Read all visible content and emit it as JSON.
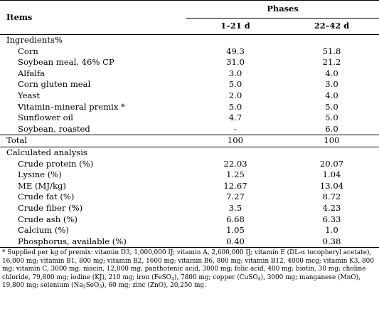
{
  "header": {
    "items": "Items",
    "phases": "Phases",
    "phase1": "1–21 d",
    "phase2": "22–42 d"
  },
  "ingredients": {
    "title": "Ingredients%",
    "rows": [
      {
        "name": "Corn",
        "p1": "49.3",
        "p2": "51.8"
      },
      {
        "name": "Soybean meal, 46% CP",
        "p1": "31.0",
        "p2": "21.2"
      },
      {
        "name": "Alfalfa",
        "p1": "3.0",
        "p2": "4.0"
      },
      {
        "name": "Corn gluten meal",
        "p1": "5.0",
        "p2": "3.0"
      },
      {
        "name": "Yeast",
        "p1": "2.0",
        "p2": "4.0"
      },
      {
        "name": "Vitamin–mineral premix *",
        "p1": "5.0",
        "p2": "5.0"
      },
      {
        "name": "Sunflower oil",
        "p1": "4.7",
        "p2": "5.0"
      },
      {
        "name": "Soybean, roasted",
        "p1": "-",
        "p2": "6.0"
      }
    ],
    "total": {
      "name": "Total",
      "p1": "100",
      "p2": "100"
    }
  },
  "analysis": {
    "title": "Calculated analysis",
    "rows": [
      {
        "name": "Crude protein (%)",
        "p1": "22.03",
        "p2": "20.07"
      },
      {
        "name": "Lysine (%)",
        "p1": "1.25",
        "p2": "1.04"
      },
      {
        "name": "ME (MJ/kg)",
        "p1": "12.67",
        "p2": "13.04"
      },
      {
        "name": "Crude fat (%)",
        "p1": "7.27",
        "p2": "8.72"
      },
      {
        "name": "Crude fiber (%)",
        "p1": "3.5",
        "p2": "4.23"
      },
      {
        "name": "Crude ash (%)",
        "p1": "6.68",
        "p2": "6.33"
      },
      {
        "name": "Calcium (%)",
        "p1": "1.05",
        "p2": "1.0"
      },
      {
        "name": "Phosphorus, available (%)",
        "p1": "0.40",
        "p2": "0.38"
      }
    ]
  },
  "footnote": {
    "part1": "* Supplied per kg of premix: vitamin D3, 1,000,000 IJ; vitamin A, 2,600,000 IJ; vitamin E (DL-α tocopheryl acetate), 16,000 mg; vitamin B1, 800 mg; vitamin B2, 1600 mg; vitamin B6, 800 mg; vitamin B12, 4000 mcg; vitamin K3, 800 mg; vitamin C, 3000 mg; niacin, 12,000 mg; panthotenic acid, 3000 mg; folic acid, 400 mg; biotin, 30 mg; choline chloride, 79,800 mg; iodine (KJ), 210 mg; iron (FeSO",
    "sub1": "4",
    "part2": "), 7800 mg; copper (CuSO",
    "sub2": "4",
    "part3": "), 3000 mg; manganese (MnO), 19,800 mg; selenium (Na",
    "sub3": "2",
    "part4": "SeO",
    "sub4": "3",
    "part5": "), 60 mg; zinc (ZnO), 20,250 mg."
  }
}
